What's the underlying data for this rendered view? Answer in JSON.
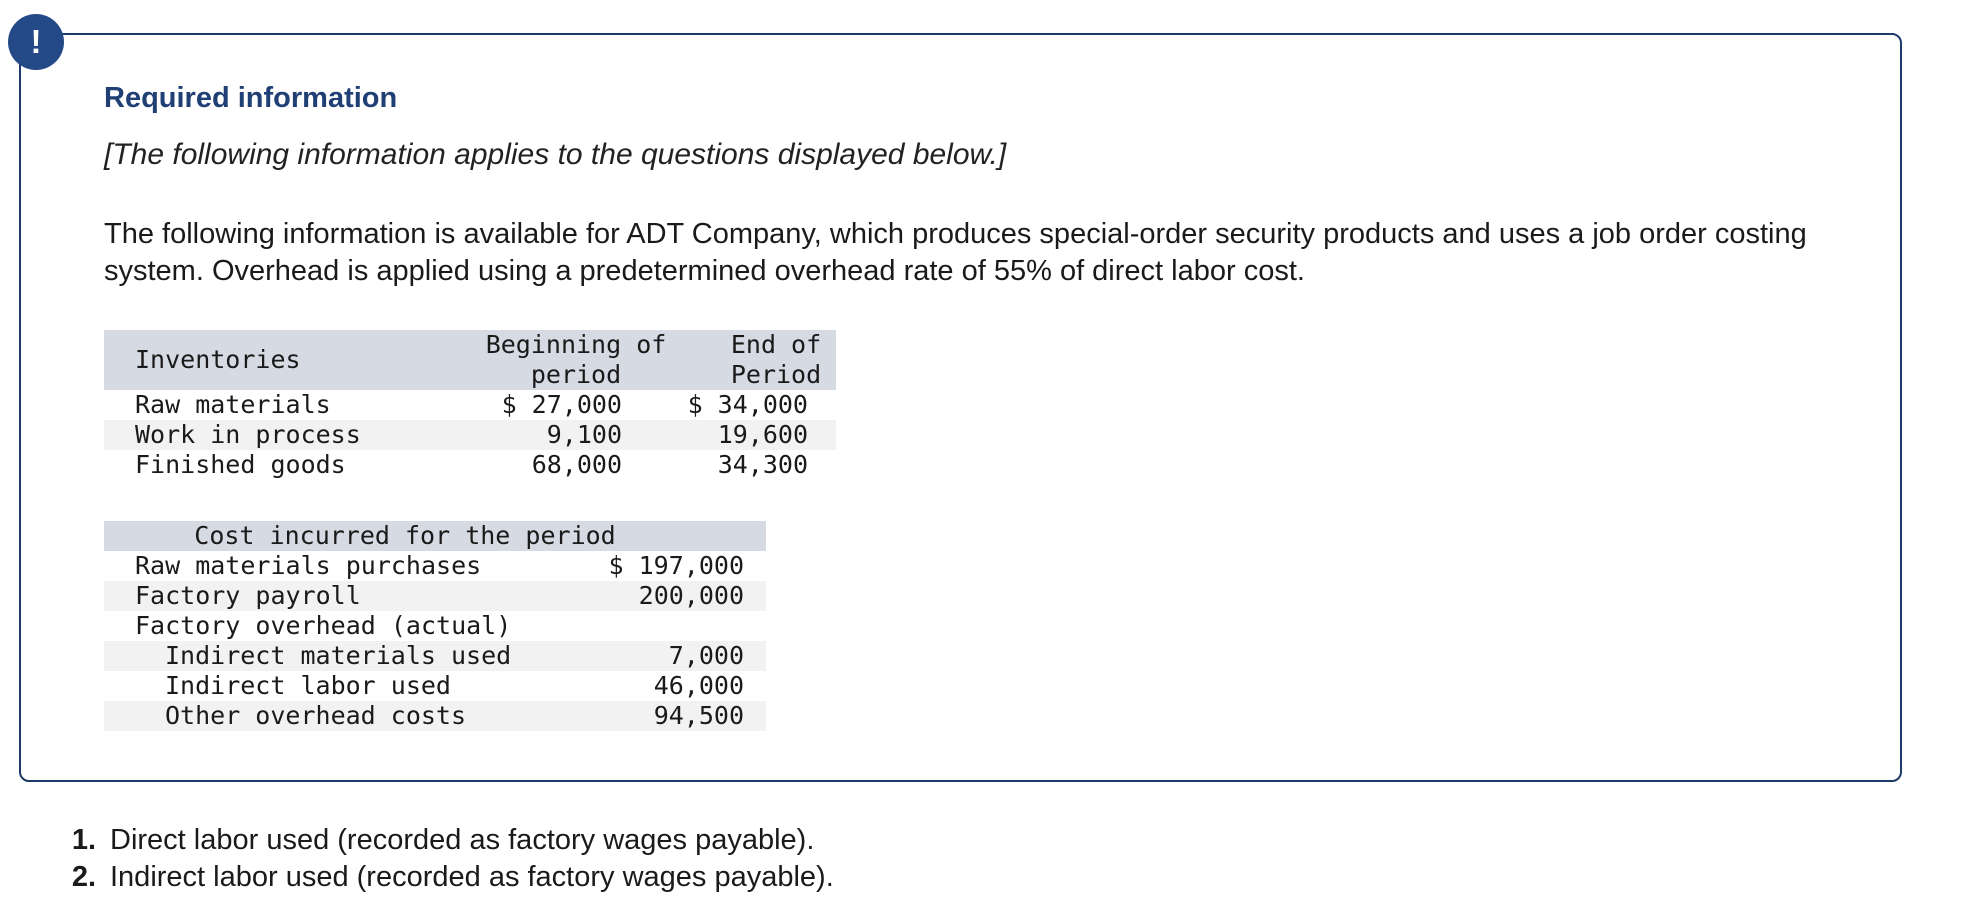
{
  "alert": {
    "glyph": "!"
  },
  "heading": "Required information",
  "note": "[The following information applies to the questions displayed below.]",
  "intro": "The following information is available for ADT Company, which produces special-order security products and uses a job order costing system. Overhead is applied using a predetermined overhead rate of 55% of direct labor cost.",
  "inventories": {
    "header": {
      "label": "Inventories",
      "beginning_line1": "Beginning of",
      "beginning_line2": "period",
      "end_line1": "End of",
      "end_line2": "Period"
    },
    "rows": [
      {
        "label": "Raw materials",
        "beginning": "$ 27,000",
        "end": "$ 34,000"
      },
      {
        "label": "Work in process",
        "beginning": "9,100",
        "end": "19,600"
      },
      {
        "label": "Finished goods",
        "beginning": "68,000",
        "end": "34,300"
      }
    ]
  },
  "costs": {
    "title": "Cost incurred for the period",
    "rows": [
      {
        "label": "Raw materials purchases",
        "value": "$ 197,000"
      },
      {
        "label": "Factory payroll",
        "value": "200,000"
      },
      {
        "label": "Factory overhead (actual)",
        "value": ""
      },
      {
        "label": "Indirect materials used",
        "value": "7,000"
      },
      {
        "label": "Indirect labor used",
        "value": "46,000"
      },
      {
        "label": "Other overhead costs",
        "value": "94,500"
      }
    ]
  },
  "questions": [
    {
      "num": "1.",
      "text": "Direct labor used (recorded as factory wages payable)."
    },
    {
      "num": "2.",
      "text": "Indirect labor used (recorded as factory wages payable)."
    }
  ],
  "colors": {
    "border": "#1d3a6b",
    "badge": "#234a86",
    "heading": "#1f3f75",
    "table_header": "#d6dbe3",
    "table_alt_row": "#f2f2f2"
  }
}
